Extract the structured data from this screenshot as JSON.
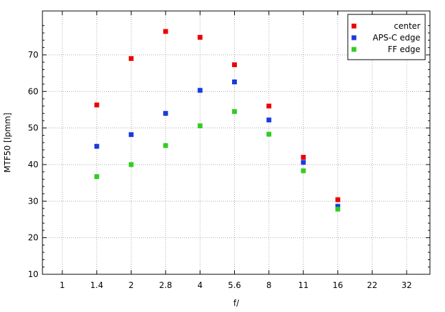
{
  "chart_data": {
    "type": "scatter",
    "title": "",
    "xlabel": "f/",
    "ylabel": "MTF50 [lpmm]",
    "x_tick_labels": [
      "1",
      "1.4",
      "2",
      "2.8",
      "4",
      "5.6",
      "8",
      "11",
      "16",
      "22",
      "32"
    ],
    "x_scale": "log2 (f-stop)",
    "ylim": [
      10,
      82
    ],
    "y_ticks": [
      10,
      20,
      30,
      40,
      50,
      60,
      70
    ],
    "grid": true,
    "legend_position": "top-right",
    "series": [
      {
        "name": "center",
        "color": "#ee0000",
        "points": [
          [
            "1.4",
            56.3
          ],
          [
            "2",
            69.0
          ],
          [
            "2.8",
            76.4
          ],
          [
            "4",
            74.8
          ],
          [
            "5.6",
            67.3
          ],
          [
            "8",
            56.0
          ],
          [
            "11",
            42.0
          ],
          [
            "16",
            30.4
          ]
        ]
      },
      {
        "name": "APS-C edge",
        "color": "#1a3ae0",
        "points": [
          [
            "1.4",
            45.0
          ],
          [
            "2",
            48.2
          ],
          [
            "2.8",
            54.0
          ],
          [
            "4",
            60.3
          ],
          [
            "5.6",
            62.6
          ],
          [
            "8",
            52.2
          ],
          [
            "11",
            40.6
          ],
          [
            "16",
            28.6
          ]
        ]
      },
      {
        "name": "FF edge",
        "color": "#33cc22",
        "points": [
          [
            "1.4",
            36.7
          ],
          [
            "2",
            40.0
          ],
          [
            "2.8",
            45.2
          ],
          [
            "4",
            50.6
          ],
          [
            "5.6",
            54.5
          ],
          [
            "8",
            48.3
          ],
          [
            "11",
            38.3
          ],
          [
            "16",
            27.8
          ]
        ]
      }
    ]
  }
}
